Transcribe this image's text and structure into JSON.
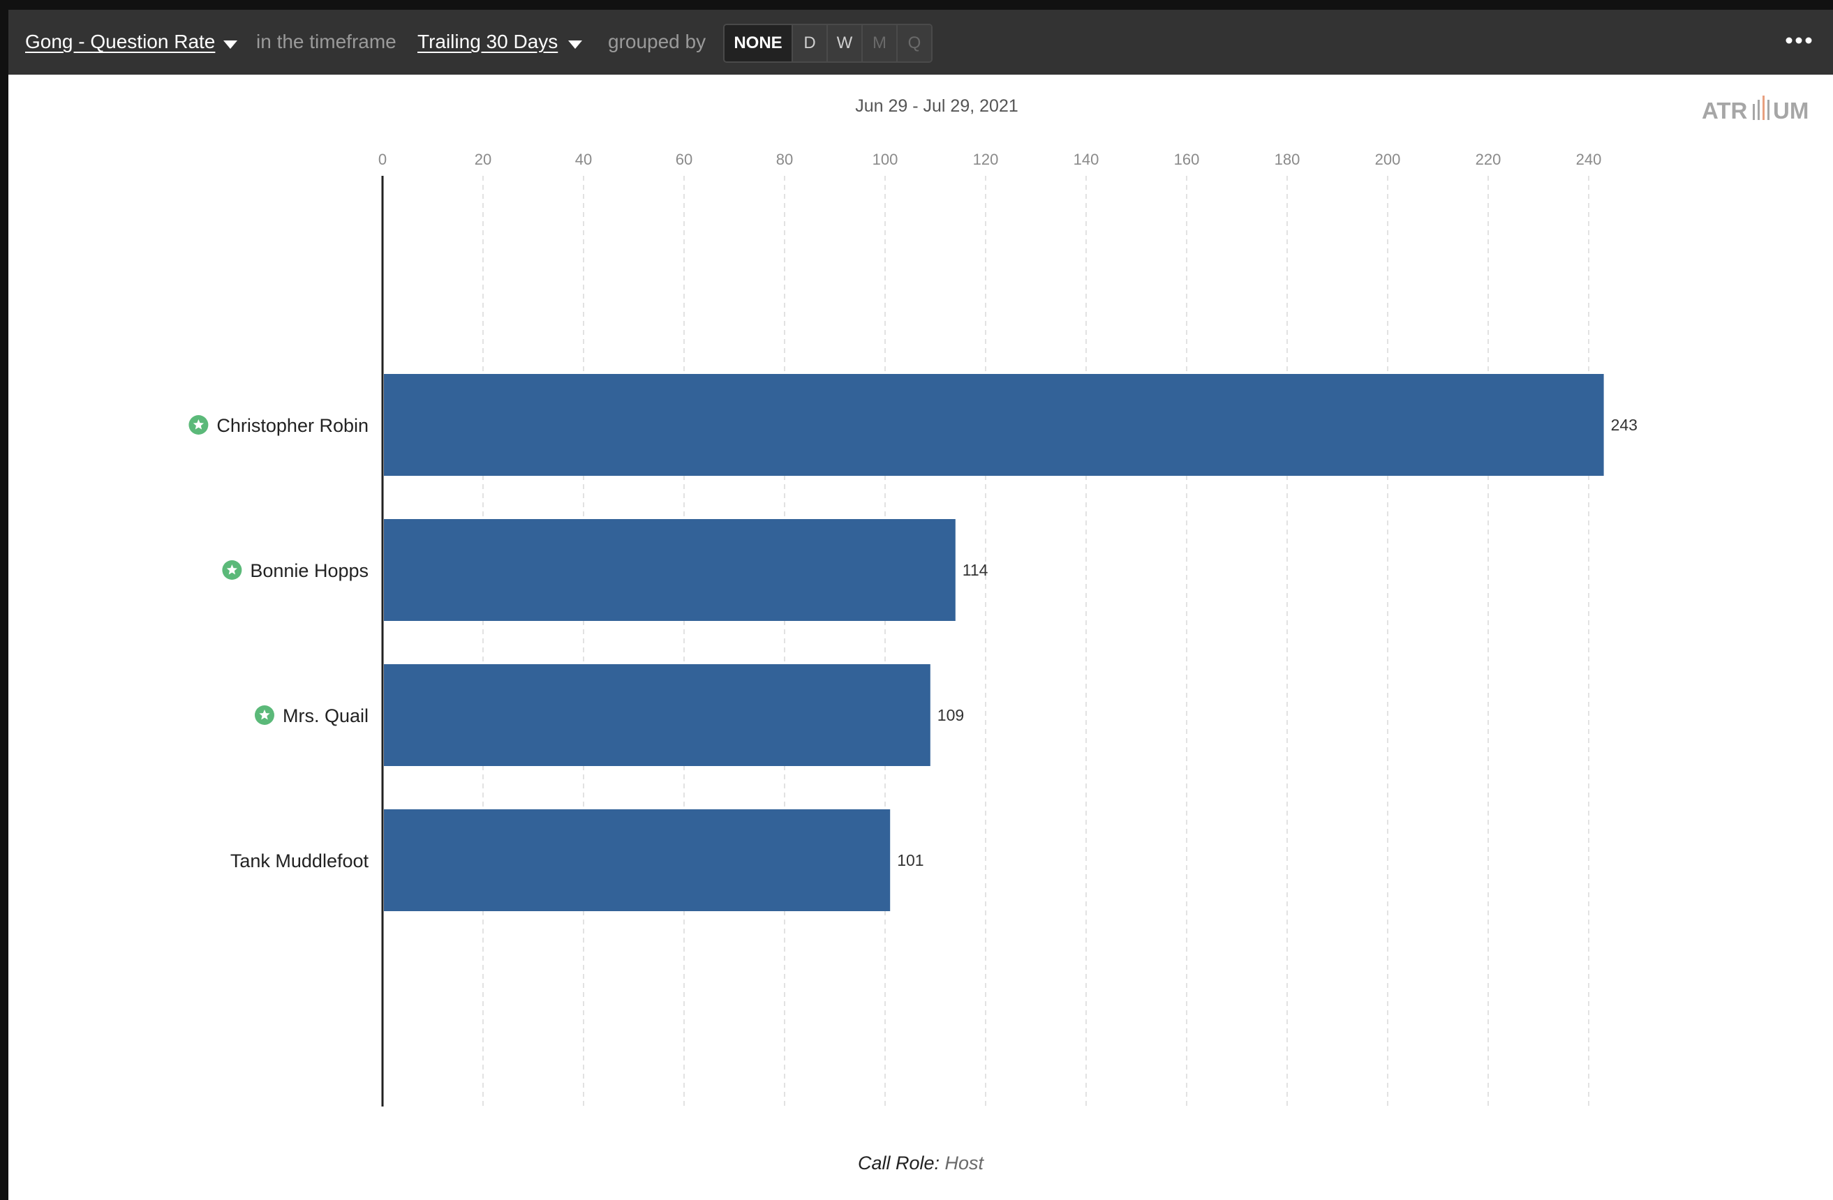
{
  "toolbar": {
    "metric_label": "Gong - Question Rate",
    "timeframe_prefix": "in the timeframe",
    "timeframe_label": "Trailing 30 Days",
    "grouped_by_label": "grouped by",
    "group_buttons": [
      {
        "label": "NONE",
        "state": "active"
      },
      {
        "label": "D",
        "state": "enabled"
      },
      {
        "label": "W",
        "state": "enabled"
      },
      {
        "label": "M",
        "state": "disabled"
      },
      {
        "label": "Q",
        "state": "disabled"
      }
    ],
    "more_icon": "ellipsis-icon"
  },
  "date_range": "Jun 29 - Jul 29, 2021",
  "logo_text": "ATRIIUM",
  "footnote": {
    "label": "Call Role:",
    "value": "Host"
  },
  "colors": {
    "bar": "#336298",
    "star_badge": "#5bb979",
    "toolbar_bg": "#333333"
  },
  "chart_data": {
    "type": "bar",
    "orientation": "horizontal",
    "title": "",
    "xlabel": "",
    "ylabel": "",
    "xlim": [
      0,
      250
    ],
    "x_ticks": [
      0,
      20,
      40,
      60,
      80,
      100,
      120,
      140,
      160,
      180,
      200,
      220,
      240
    ],
    "x_axis_position": "top",
    "grid": "vertical dashed",
    "categories": [
      "Christopher Robin",
      "Bonnie Hopps",
      "Mrs. Quail",
      "Tank Muddlefoot"
    ],
    "starred": [
      true,
      true,
      true,
      false
    ],
    "values": [
      243,
      114,
      109,
      101
    ],
    "data_labels": [
      "243",
      "114",
      "109",
      "101"
    ]
  }
}
